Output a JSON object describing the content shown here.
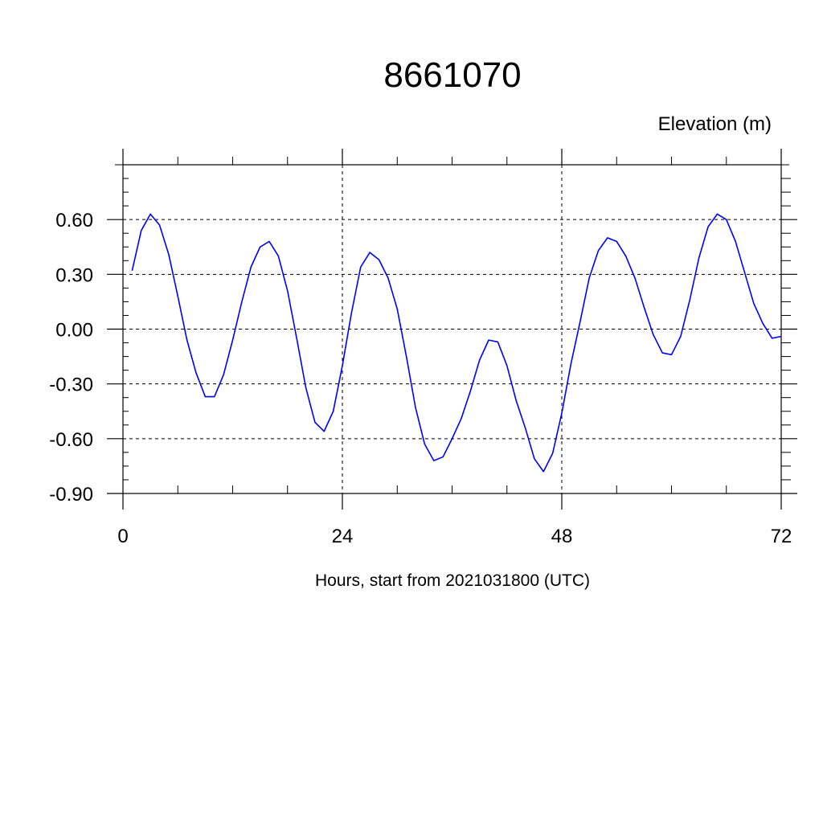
{
  "chart_data": {
    "type": "line",
    "title": "8661070",
    "ylabel": "Elevation (m)",
    "xlabel": "Hours, start from 2021031800 (UTC)",
    "xlim": [
      0,
      72
    ],
    "ylim": [
      -0.9,
      0.9
    ],
    "x_ticks": [
      0,
      24,
      48,
      72
    ],
    "x_tick_labels": [
      "0",
      "24",
      "48",
      "72"
    ],
    "y_ticks": [
      -0.9,
      -0.6,
      -0.3,
      0.0,
      0.3,
      0.6
    ],
    "y_tick_labels": [
      "-0.90",
      "-0.60",
      "-0.30",
      "0.00",
      "0.30",
      "0.60"
    ],
    "grid": true,
    "line_color": "#0000ff",
    "series": [
      {
        "x": [
          1,
          2,
          3,
          4,
          5,
          6,
          7,
          8,
          9,
          10,
          11,
          12,
          13,
          14,
          15,
          16,
          17,
          18,
          19,
          20,
          21,
          22,
          23,
          24,
          25,
          26,
          27,
          28,
          29,
          30,
          31,
          32,
          33,
          34,
          35,
          36,
          37,
          38,
          39,
          40,
          41,
          42,
          43,
          44,
          45,
          46,
          47,
          48,
          49,
          50,
          51,
          52,
          53,
          54,
          55,
          56,
          57,
          58,
          59,
          60,
          61,
          62,
          63,
          64,
          65,
          66,
          67,
          68,
          69,
          70,
          71,
          72
        ],
        "values": [
          0.32,
          0.54,
          0.63,
          0.57,
          0.41,
          0.18,
          -0.06,
          -0.24,
          -0.37,
          -0.37,
          -0.25,
          -0.06,
          0.15,
          0.34,
          0.45,
          0.48,
          0.4,
          0.21,
          -0.05,
          -0.32,
          -0.51,
          -0.56,
          -0.45,
          -0.2,
          0.09,
          0.34,
          0.42,
          0.38,
          0.28,
          0.11,
          -0.15,
          -0.43,
          -0.63,
          -0.72,
          -0.7,
          -0.6,
          -0.49,
          -0.34,
          -0.17,
          -0.06,
          -0.07,
          -0.2,
          -0.39,
          -0.54,
          -0.71,
          -0.78,
          -0.68,
          -0.46,
          -0.19,
          0.04,
          0.28,
          0.43,
          0.5,
          0.48,
          0.4,
          0.28,
          0.12,
          -0.03,
          -0.13,
          -0.14,
          -0.04,
          0.16,
          0.39,
          0.56,
          0.63,
          0.6,
          0.48,
          0.31,
          0.14,
          0.03,
          -0.05,
          -0.04
        ]
      }
    ]
  }
}
